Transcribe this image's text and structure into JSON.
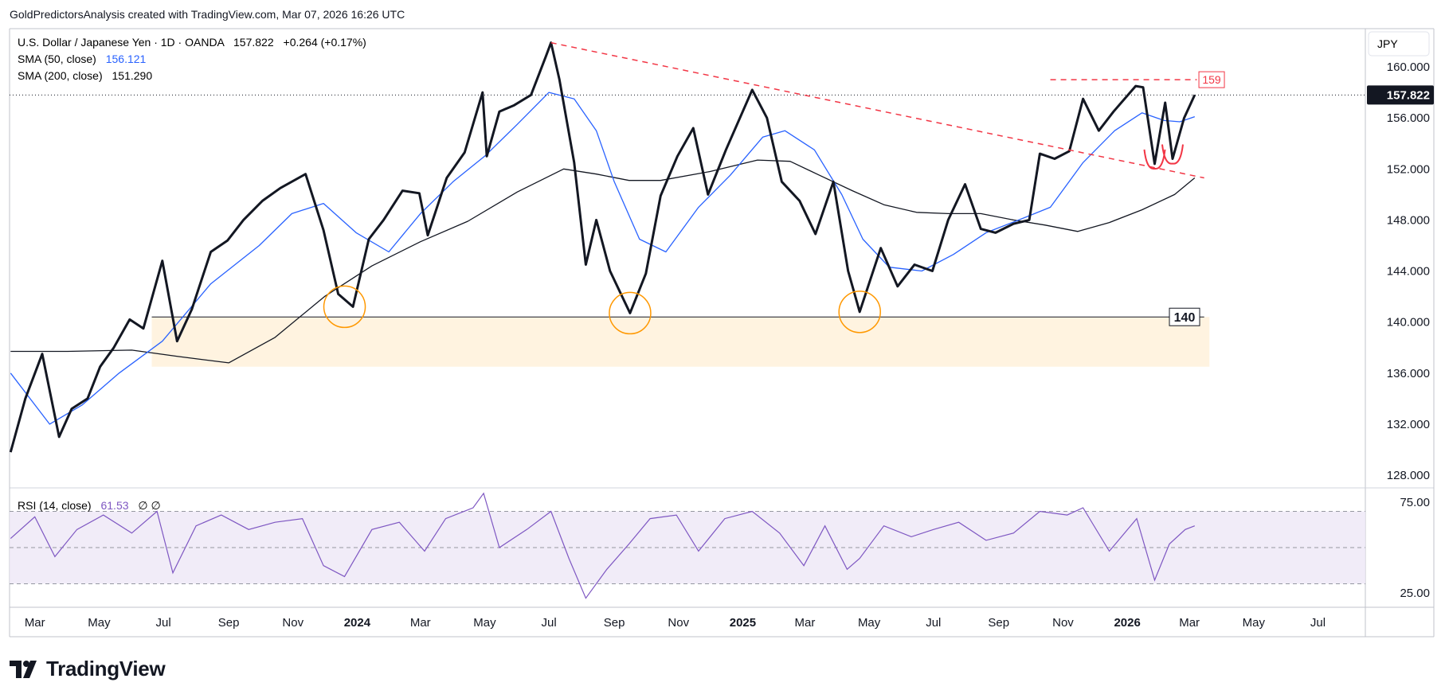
{
  "header": {
    "credit": "GoldPredictorsAnalysis created with TradingView.com, Mar 07, 2026 16:26 UTC"
  },
  "legend": {
    "symbol": "U.S. Dollar / Japanese Yen · 1D · OANDA",
    "last": "157.822",
    "change": "+0.264 (+0.17%)",
    "sma50_label": "SMA (50, close)",
    "sma50_value": "156.121",
    "sma200_label": "SMA (200, close)",
    "sma200_value": "151.290",
    "rsi_label": "RSI (14, close)",
    "rsi_value": "61.53",
    "rsi_extra": "∅  ∅"
  },
  "currency": "JPY",
  "price_badge": "157.822",
  "level_labels": {
    "top": "159",
    "support": "140"
  },
  "brand": "TradingView",
  "colors": {
    "price": "#131722",
    "sma50": "#2962ff",
    "sma200": "#131722",
    "rsi": "#7e57c2",
    "trend": "#f23645",
    "support_zone": "#fff3e0",
    "circle": "#ff9800"
  },
  "chart_data": {
    "type": "line",
    "title": "U.S. Dollar / Japanese Yen · 1D · OANDA",
    "y_ticks": [
      "160.000",
      "156.000",
      "152.000",
      "148.000",
      "144.000",
      "140.000",
      "136.000",
      "132.000",
      "128.000"
    ],
    "ylim": [
      127,
      163
    ],
    "x_ticks": [
      "Mar",
      "May",
      "Jul",
      "Sep",
      "Nov",
      "2024",
      "Mar",
      "May",
      "Jul",
      "Sep",
      "Nov",
      "2025",
      "Mar",
      "May",
      "Jul",
      "Sep",
      "Nov",
      "2026",
      "Mar",
      "May",
      "Jul"
    ],
    "x_tick_dates": [
      "2023-03-01",
      "2023-05-01",
      "2023-07-01",
      "2023-09-01",
      "2023-11-01",
      "2024-01-01",
      "2024-03-01",
      "2024-05-01",
      "2024-07-01",
      "2024-09-01",
      "2024-11-01",
      "2025-01-01",
      "2025-03-01",
      "2025-05-01",
      "2025-07-01",
      "2025-09-01",
      "2025-11-01",
      "2026-01-01",
      "2026-03-01",
      "2026-05-01",
      "2026-07-01"
    ],
    "xlim": [
      "2023-02-05",
      "2026-08-15"
    ],
    "series": [
      {
        "name": "U.S. Dollar / Japanese Yen · 1D · OANDA",
        "x": [
          "2023-02-06",
          "2023-02-20",
          "2023-03-08",
          "2023-03-24",
          "2023-04-05",
          "2023-04-20",
          "2023-05-02",
          "2023-05-15",
          "2023-05-30",
          "2023-06-12",
          "2023-06-30",
          "2023-07-14",
          "2023-07-28",
          "2023-08-15",
          "2023-08-31",
          "2023-09-15",
          "2023-10-03",
          "2023-10-20",
          "2023-11-13",
          "2023-11-30",
          "2023-12-14",
          "2023-12-28",
          "2024-01-12",
          "2024-01-26",
          "2024-02-13",
          "2024-02-29",
          "2024-03-08",
          "2024-03-26",
          "2024-04-12",
          "2024-04-29",
          "2024-05-03",
          "2024-05-15",
          "2024-05-29",
          "2024-06-14",
          "2024-06-28",
          "2024-07-03",
          "2024-07-11",
          "2024-07-25",
          "2024-08-05",
          "2024-08-15",
          "2024-08-28",
          "2024-09-16",
          "2024-10-01",
          "2024-10-15",
          "2024-10-31",
          "2024-11-15",
          "2024-11-29",
          "2024-12-16",
          "2025-01-10",
          "2025-01-24",
          "2025-02-07",
          "2025-02-24",
          "2025-03-11",
          "2025-03-28",
          "2025-04-11",
          "2025-04-22",
          "2025-05-12",
          "2025-05-28",
          "2025-06-13",
          "2025-06-30",
          "2025-07-15",
          "2025-07-31",
          "2025-08-15",
          "2025-08-29",
          "2025-09-15",
          "2025-09-30",
          "2025-10-10",
          "2025-10-24",
          "2025-11-07",
          "2025-11-20",
          "2025-12-05",
          "2025-12-19",
          "2026-01-09",
          "2026-01-16",
          "2026-01-27",
          "2026-02-06",
          "2026-02-13",
          "2026-02-24",
          "2026-03-06"
        ],
        "values": [
          129.8,
          134.0,
          137.5,
          131.0,
          133.2,
          134.0,
          136.5,
          138.0,
          140.2,
          139.5,
          144.8,
          138.5,
          141.0,
          145.5,
          146.4,
          148.0,
          149.5,
          150.5,
          151.6,
          147.2,
          142.2,
          141.2,
          146.5,
          148.0,
          150.3,
          150.1,
          146.8,
          151.3,
          153.3,
          158.0,
          153.0,
          156.5,
          157.0,
          157.8,
          160.8,
          161.9,
          159.0,
          152.5,
          144.5,
          148.0,
          144.0,
          140.7,
          143.8,
          149.9,
          153.0,
          155.2,
          150.0,
          153.5,
          158.2,
          156.0,
          151.0,
          149.5,
          146.9,
          151.0,
          144.0,
          140.8,
          145.8,
          142.8,
          144.5,
          144.0,
          148.0,
          150.8,
          147.3,
          147.0,
          147.7,
          148.0,
          153.2,
          152.8,
          153.4,
          157.5,
          155.0,
          156.5,
          158.5,
          158.4,
          152.4,
          157.2,
          152.8,
          156.0,
          157.8
        ]
      },
      {
        "name": "SMA (50, close)",
        "x": [
          "2023-02-06",
          "2023-03-15",
          "2023-04-15",
          "2023-05-20",
          "2023-06-30",
          "2023-08-15",
          "2023-09-30",
          "2023-10-31",
          "2023-11-30",
          "2023-12-31",
          "2024-01-31",
          "2024-03-01",
          "2024-04-01",
          "2024-05-01",
          "2024-06-01",
          "2024-07-01",
          "2024-07-25",
          "2024-08-15",
          "2024-09-01",
          "2024-09-25",
          "2024-10-20",
          "2024-11-20",
          "2024-12-20",
          "2025-01-20",
          "2025-02-10",
          "2025-03-10",
          "2025-04-05",
          "2025-04-25",
          "2025-05-20",
          "2025-06-20",
          "2025-07-20",
          "2025-08-20",
          "2025-09-20",
          "2025-10-20",
          "2025-11-20",
          "2025-12-20",
          "2026-01-15",
          "2026-02-05",
          "2026-02-20",
          "2026-03-06"
        ],
        "values": [
          136.0,
          132.0,
          133.5,
          136.0,
          138.5,
          143.0,
          146.0,
          148.5,
          149.3,
          147.0,
          145.5,
          148.5,
          151.0,
          153.0,
          155.5,
          158.0,
          157.5,
          155.0,
          151.0,
          146.5,
          145.5,
          149.0,
          151.5,
          154.5,
          155.0,
          153.5,
          150.0,
          146.5,
          144.3,
          144.0,
          145.3,
          147.0,
          148.0,
          149.0,
          152.5,
          155.0,
          156.4,
          155.8,
          155.7,
          156.1
        ]
      },
      {
        "name": "SMA (200, close)",
        "x": [
          "2023-02-06",
          "2023-04-01",
          "2023-06-01",
          "2023-07-15",
          "2023-09-01",
          "2023-10-15",
          "2023-12-01",
          "2024-01-15",
          "2024-03-01",
          "2024-04-15",
          "2024-06-01",
          "2024-07-15",
          "2024-08-15",
          "2024-09-15",
          "2024-10-15",
          "2024-12-01",
          "2025-01-15",
          "2025-02-15",
          "2025-03-15",
          "2025-04-15",
          "2025-05-15",
          "2025-06-15",
          "2025-07-15",
          "2025-08-15",
          "2025-09-15",
          "2025-10-15",
          "2025-11-15",
          "2025-12-15",
          "2026-01-15",
          "2026-02-15",
          "2026-03-06"
        ],
        "values": [
          137.7,
          137.7,
          137.8,
          137.3,
          136.8,
          138.8,
          142.0,
          144.4,
          146.3,
          147.9,
          150.2,
          152.0,
          151.6,
          151.1,
          151.1,
          151.8,
          152.7,
          152.6,
          151.5,
          150.3,
          149.2,
          148.6,
          148.5,
          148.5,
          148.0,
          147.6,
          147.1,
          147.8,
          148.8,
          150.0,
          151.3
        ]
      }
    ],
    "rsi": {
      "name": "RSI (14, close)",
      "ticks": [
        "75.00",
        "25.00"
      ],
      "ylim": [
        17,
        83
      ],
      "bands": [
        70,
        50,
        30
      ],
      "x": [
        "2023-02-06",
        "2023-03-01",
        "2023-03-20",
        "2023-04-10",
        "2023-05-05",
        "2023-06-01",
        "2023-06-25",
        "2023-07-10",
        "2023-08-01",
        "2023-08-25",
        "2023-09-20",
        "2023-10-15",
        "2023-11-10",
        "2023-11-30",
        "2023-12-20",
        "2024-01-15",
        "2024-02-10",
        "2024-03-05",
        "2024-03-25",
        "2024-04-20",
        "2024-04-30",
        "2024-05-15",
        "2024-06-10",
        "2024-07-03",
        "2024-07-20",
        "2024-08-05",
        "2024-08-25",
        "2024-09-15",
        "2024-10-05",
        "2024-10-30",
        "2024-11-20",
        "2024-12-15",
        "2025-01-10",
        "2025-02-05",
        "2025-02-28",
        "2025-03-20",
        "2025-04-10",
        "2025-04-22",
        "2025-05-15",
        "2025-06-10",
        "2025-07-01",
        "2025-07-25",
        "2025-08-20",
        "2025-09-15",
        "2025-10-10",
        "2025-11-05",
        "2025-11-20",
        "2025-12-15",
        "2026-01-10",
        "2026-01-27",
        "2026-02-10",
        "2026-02-25",
        "2026-03-06"
      ],
      "values": [
        55,
        67,
        45,
        60,
        68,
        58,
        70,
        36,
        62,
        68,
        60,
        64,
        66,
        40,
        34,
        60,
        64,
        48,
        66,
        72,
        80,
        50,
        60,
        70,
        44,
        22,
        38,
        52,
        66,
        68,
        48,
        66,
        70,
        58,
        40,
        62,
        38,
        44,
        62,
        56,
        60,
        64,
        54,
        58,
        70,
        68,
        72,
        48,
        66,
        32,
        52,
        60,
        62
      ]
    },
    "annotations": [
      "159",
      "140"
    ]
  }
}
